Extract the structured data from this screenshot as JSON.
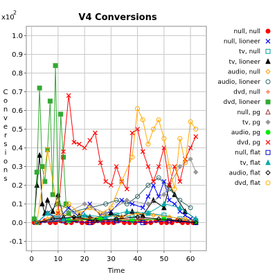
{
  "chart_data": {
    "type": "line",
    "title": "V4 Conversions",
    "xlabel": "Time",
    "ylabel": "Conversions",
    "y_multiplier": "x10",
    "y_multiplier_exponent": "2",
    "xlim": [
      -2,
      66
    ],
    "ylim": [
      -0.15,
      1.05
    ],
    "x_ticks": [
      0,
      10,
      20,
      30,
      40,
      50,
      60
    ],
    "y_ticks": [
      -0.1,
      0.0,
      0.1,
      0.2,
      0.3,
      0.4,
      0.5,
      0.6,
      0.7,
      0.8,
      0.9,
      1.0
    ],
    "y_tick_labels": [
      "-0.1",
      "0.0",
      "0.1",
      "0.2",
      "0.3",
      "0.4",
      "0.5",
      "0.6",
      "0.7",
      "0.8",
      "0.9",
      "1.0"
    ],
    "grid": true,
    "legend_position": "right",
    "series": [
      {
        "name": "null, null",
        "color": "#ff0000",
        "marker": "circle-filled",
        "x": [
          1,
          3,
          5,
          7,
          9,
          11,
          13,
          15,
          17,
          19,
          21,
          23,
          25,
          27,
          29,
          31,
          33,
          35,
          37,
          39,
          41,
          43,
          45,
          47,
          49,
          51,
          53,
          55,
          57,
          59,
          61
        ],
        "y": [
          0.0,
          0.0,
          0.01,
          0.0,
          0.0,
          0.01,
          0.0,
          0.0,
          0.01,
          0.0,
          0.0,
          0.0,
          0.01,
          0.0,
          0.0,
          0.0,
          0.01,
          0.0,
          0.0,
          0.0,
          0.01,
          0.0,
          0.0,
          0.01,
          0.0,
          0.0,
          0.0,
          0.01,
          0.0,
          0.0,
          0.0
        ]
      },
      {
        "name": "null, lioneer",
        "color": "#0000ff",
        "marker": "x",
        "x": [
          2,
          6,
          10,
          14,
          18,
          22,
          26,
          30,
          34,
          38,
          42,
          44,
          46,
          48,
          50,
          52,
          54,
          56,
          58,
          60,
          62
        ],
        "y": [
          0.0,
          0.05,
          0.02,
          0.08,
          0.03,
          0.1,
          0.04,
          0.06,
          0.12,
          0.1,
          0.08,
          0.14,
          0.2,
          0.14,
          0.22,
          0.12,
          0.1,
          0.06,
          0.04,
          0.02,
          0.01
        ]
      },
      {
        "name": "tv, null",
        "color": "#009999",
        "marker": "square-open",
        "x": [
          2,
          8,
          14,
          20,
          26,
          32,
          38,
          44,
          50,
          56,
          62
        ],
        "y": [
          0.0,
          0.02,
          0.01,
          0.03,
          0.02,
          0.04,
          0.03,
          0.05,
          0.04,
          0.02,
          0.01
        ]
      },
      {
        "name": "tv, lioneer",
        "color": "#000000",
        "marker": "triangle-filled",
        "x": [
          1,
          2,
          3,
          4,
          5,
          6,
          8,
          10,
          12,
          14,
          16,
          18,
          22,
          26,
          30,
          34,
          38,
          42,
          46,
          50,
          52,
          54,
          58,
          62
        ],
        "y": [
          0.02,
          0.2,
          0.36,
          0.1,
          0.05,
          0.12,
          0.06,
          0.15,
          0.03,
          0.05,
          0.02,
          0.04,
          0.03,
          0.02,
          0.05,
          0.03,
          0.06,
          0.04,
          0.12,
          0.08,
          0.2,
          0.15,
          0.06,
          0.02
        ]
      },
      {
        "name": "audio, null",
        "color": "#ff9900",
        "marker": "diamond-open",
        "x": [
          2,
          6,
          10,
          16,
          22,
          28,
          34,
          40,
          46,
          52,
          58,
          62
        ],
        "y": [
          0.0,
          0.02,
          0.05,
          0.03,
          0.02,
          0.04,
          0.03,
          0.05,
          0.04,
          0.03,
          0.02,
          0.01
        ]
      },
      {
        "name": "audio, lioneer",
        "color": "#336666",
        "marker": "circle-open",
        "x": [
          2,
          6,
          10,
          16,
          22,
          28,
          32,
          36,
          40,
          44,
          48,
          52,
          56,
          60
        ],
        "y": [
          0.0,
          0.05,
          0.1,
          0.06,
          0.08,
          0.1,
          0.12,
          0.1,
          0.14,
          0.2,
          0.24,
          0.18,
          0.12,
          0.08
        ]
      },
      {
        "name": "dvd, null",
        "color": "#ff6633",
        "marker": "plus",
        "x": [
          2,
          10,
          18,
          26,
          34,
          42,
          50,
          58,
          62
        ],
        "y": [
          0.0,
          0.01,
          0.02,
          0.01,
          0.02,
          0.01,
          0.02,
          0.01,
          0.0
        ]
      },
      {
        "name": "dvd, lioneer",
        "color": "#33aa33",
        "marker": "square-filled",
        "x": [
          1,
          2,
          3,
          4,
          5,
          6,
          7,
          8,
          9,
          10,
          11,
          12,
          13,
          14
        ],
        "y": [
          0.02,
          0.27,
          0.72,
          0.3,
          0.22,
          0.39,
          0.65,
          0.15,
          0.84,
          0.1,
          0.58,
          0.35,
          0.1,
          0.05
        ]
      },
      {
        "name": "null, pg",
        "color": "#993333",
        "marker": "triangle-open",
        "x": [
          2,
          12,
          22,
          32,
          42,
          52,
          62
        ],
        "y": [
          0.0,
          0.01,
          0.02,
          0.01,
          0.02,
          0.01,
          0.0
        ]
      },
      {
        "name": "tv, pg",
        "color": "#999999",
        "marker": "diamond-filled",
        "x": [
          2,
          10,
          20,
          28,
          36,
          44,
          50,
          56,
          60,
          62
        ],
        "y": [
          0.0,
          0.03,
          0.1,
          0.05,
          0.12,
          0.1,
          0.15,
          0.3,
          0.34,
          0.27
        ]
      },
      {
        "name": "audio, pg",
        "color": "#00ee00",
        "marker": "circle-filled",
        "x": [
          2,
          14,
          26,
          38,
          50,
          62
        ],
        "y": [
          0.0,
          0.01,
          0.02,
          0.01,
          0.02,
          0.0
        ]
      },
      {
        "name": "dvd, pg",
        "color": "#ff0000",
        "marker": "x",
        "x": [
          10,
          12,
          14,
          16,
          18,
          20,
          22,
          24,
          26,
          28,
          30,
          32,
          34,
          36,
          38,
          40,
          42,
          44,
          46,
          48,
          50,
          52,
          54,
          56,
          58,
          60,
          62
        ],
        "y": [
          0.05,
          0.38,
          0.68,
          0.43,
          0.42,
          0.4,
          0.44,
          0.48,
          0.32,
          0.22,
          0.2,
          0.3,
          0.22,
          0.18,
          0.48,
          0.5,
          0.38,
          0.3,
          0.22,
          0.3,
          0.4,
          0.2,
          0.3,
          0.22,
          0.34,
          0.4,
          0.46
        ]
      },
      {
        "name": "null, flat",
        "color": "#0000cc",
        "marker": "square-open",
        "x": [
          2,
          12,
          22,
          32,
          42,
          52,
          62
        ],
        "y": [
          0.0,
          0.01,
          0.0,
          0.01,
          0.0,
          0.01,
          0.0
        ]
      },
      {
        "name": "tv, flat",
        "color": "#00aaaa",
        "marker": "triangle-filled",
        "x": [
          2,
          6,
          12,
          20,
          28,
          36,
          44,
          50,
          56,
          62
        ],
        "y": [
          0.0,
          0.05,
          0.02,
          0.04,
          0.03,
          0.06,
          0.05,
          0.1,
          0.08,
          0.02
        ]
      },
      {
        "name": "audio, flat",
        "color": "#000000",
        "marker": "diamond-open",
        "x": [
          2,
          8,
          16,
          24,
          32,
          40,
          48,
          56,
          62
        ],
        "y": [
          0.0,
          0.02,
          0.03,
          0.01,
          0.02,
          0.03,
          0.02,
          0.01,
          0.0
        ]
      },
      {
        "name": "dvd, flat",
        "color": "#ffaa00",
        "marker": "circle-open",
        "x": [
          2,
          6,
          10,
          14,
          18,
          22,
          26,
          30,
          34,
          38,
          40,
          42,
          44,
          46,
          48,
          50,
          52,
          54,
          56,
          58,
          60,
          62
        ],
        "y": [
          0.0,
          0.39,
          0.06,
          0.1,
          0.05,
          0.08,
          0.05,
          0.08,
          0.22,
          0.35,
          0.61,
          0.55,
          0.42,
          0.5,
          0.55,
          0.45,
          0.3,
          0.18,
          0.45,
          0.32,
          0.54,
          0.5
        ]
      }
    ]
  }
}
